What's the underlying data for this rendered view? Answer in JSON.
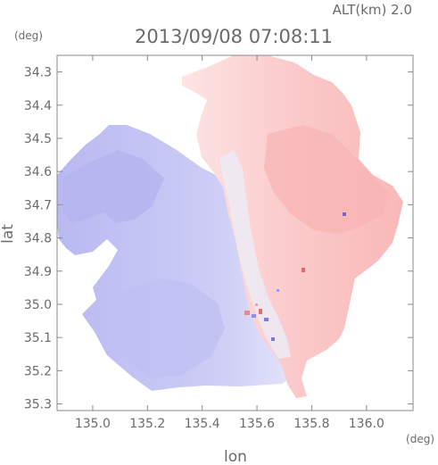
{
  "header": {
    "altitude_label": "ALT(km)  2.0",
    "timestamp": "2013/09/08  07:08:11",
    "unit_left": "(deg)",
    "unit_right": "(deg)"
  },
  "axes": {
    "xlabel": "lon",
    "ylabel": "lat",
    "x_ticks": [
      "135.0",
      "135.2",
      "135.4",
      "135.6",
      "135.8",
      "136.0"
    ],
    "y_ticks": [
      "35.3",
      "35.2",
      "35.1",
      "35.0",
      "34.9",
      "34.8",
      "34.7",
      "34.6",
      "34.5",
      "34.4",
      "34.3"
    ]
  },
  "chart_data": {
    "type": "heatmap",
    "title": "2013/09/08  07:08:11",
    "subtitle": "ALT(km)  2.0",
    "xlabel": "lon",
    "ylabel": "lat",
    "x_unit": "(deg)",
    "y_unit": "(deg)",
    "xlim": [
      134.87,
      136.17
    ],
    "ylim": [
      34.28,
      35.35
    ],
    "x_ticks": [
      135.0,
      135.2,
      135.4,
      135.6,
      135.8,
      136.0
    ],
    "y_ticks": [
      34.3,
      34.4,
      34.5,
      34.6,
      34.7,
      34.8,
      34.9,
      35.0,
      35.1,
      35.2,
      35.3
    ],
    "colors": {
      "approaching": "#c9c9f5",
      "receding": "#fbc6c6",
      "frame": "#8a8a8a"
    }
  }
}
